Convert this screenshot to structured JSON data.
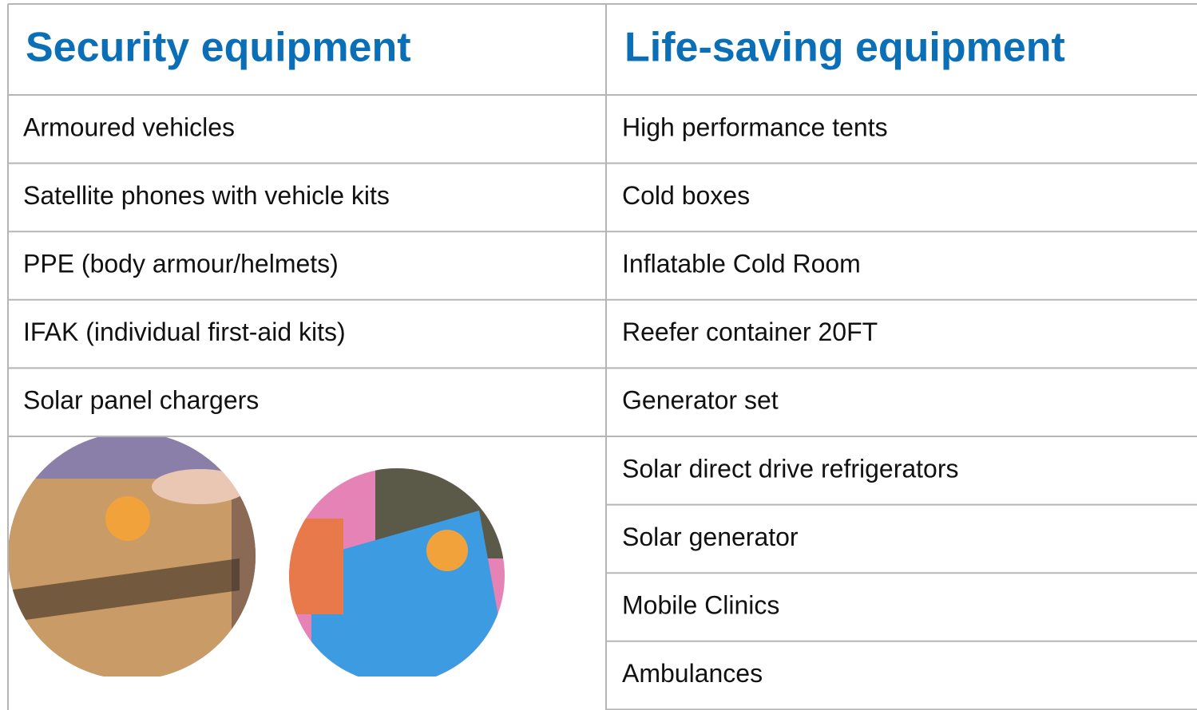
{
  "columns": [
    {
      "title": "Security equipment",
      "items": [
        "Armoured vehicles",
        "Satellite phones with vehicle kits",
        "PPE (body armour/helmets)",
        "IFAK (individual first-aid kits)",
        "Solar panel chargers"
      ]
    },
    {
      "title": "Life-saving equipment",
      "items": [
        "High performance tents",
        "Cold boxes",
        "Inflatable Cold Room",
        "Reefer container 20FT",
        "Generator set",
        "Solar direct drive refrigerators",
        "Solar generator",
        "Mobile Clinics",
        "Ambulances"
      ]
    }
  ]
}
